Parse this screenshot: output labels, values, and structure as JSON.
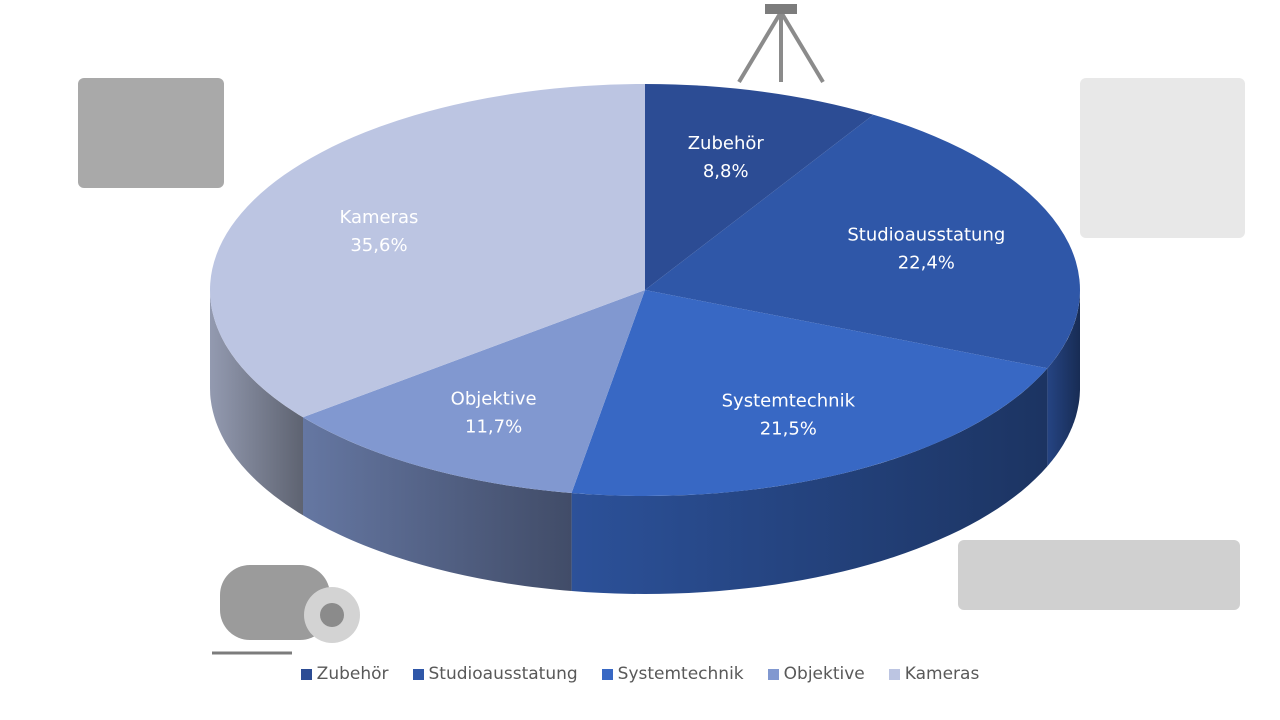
{
  "chart_data": {
    "type": "pie",
    "style": "3d",
    "title": "",
    "legend_position": "bottom",
    "slices": [
      {
        "name": "Zubehör",
        "value": 8.8,
        "label": "8,8%",
        "color": "#2c4c94"
      },
      {
        "name": "Studioausstatung",
        "value": 22.4,
        "label": "22,4%",
        "color": "#2f57a8"
      },
      {
        "name": "Systemtechnik",
        "value": 21.5,
        "label": "21,5%",
        "color": "#3868c4"
      },
      {
        "name": "Objektive",
        "value": 11.7,
        "label": "11,7%",
        "color": "#8198d0"
      },
      {
        "name": "Kameras",
        "value": 35.6,
        "label": "35,6%",
        "color": "#bcc5e2"
      }
    ]
  },
  "images": [
    "cinema-camera",
    "tripod",
    "studio-lighting-kit",
    "lens",
    "mini-pc"
  ]
}
